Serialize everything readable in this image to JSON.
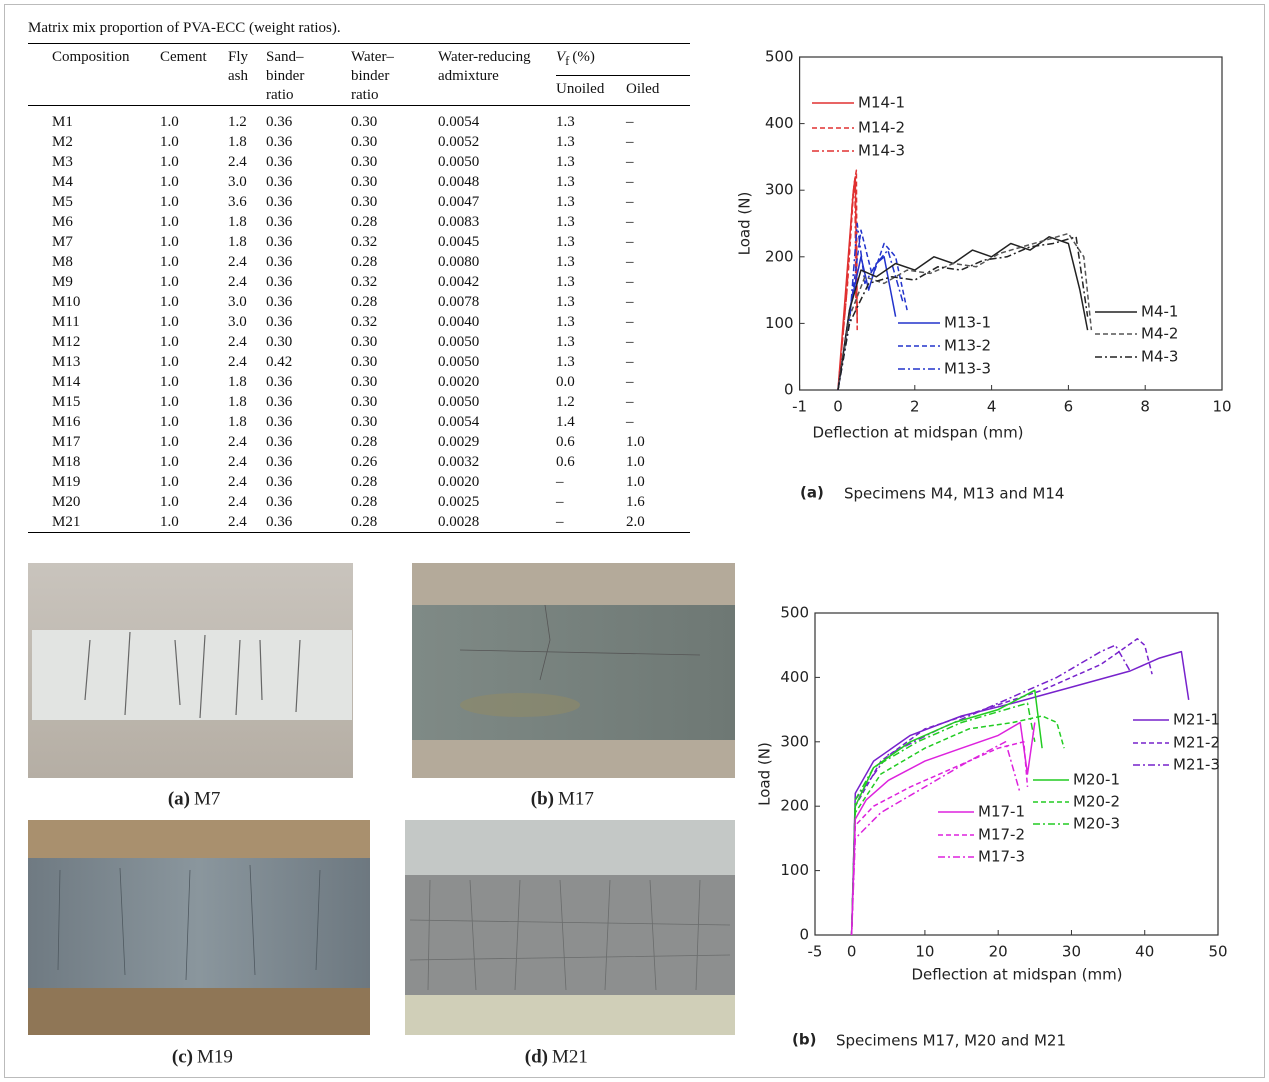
{
  "table": {
    "caption": "Matrix mix proportion of PVA-ECC (weight ratios).",
    "headers": [
      "Composition",
      "Cement",
      "Fly ash",
      "Sand–binder ratio",
      "Water–binder ratio",
      "Water-reducing admixture"
    ],
    "vf_header": {
      "symbol": "V",
      "subscript": "f",
      "unit": "(%)"
    },
    "subheaders": [
      "Unoiled",
      "Oiled"
    ],
    "rows": [
      [
        "M1",
        "1.0",
        "1.2",
        "0.36",
        "0.30",
        "0.0054",
        "1.3",
        "–"
      ],
      [
        "M2",
        "1.0",
        "1.8",
        "0.36",
        "0.30",
        "0.0052",
        "1.3",
        "–"
      ],
      [
        "M3",
        "1.0",
        "2.4",
        "0.36",
        "0.30",
        "0.0050",
        "1.3",
        "–"
      ],
      [
        "M4",
        "1.0",
        "3.0",
        "0.36",
        "0.30",
        "0.0048",
        "1.3",
        "–"
      ],
      [
        "M5",
        "1.0",
        "3.6",
        "0.36",
        "0.30",
        "0.0047",
        "1.3",
        "–"
      ],
      [
        "M6",
        "1.0",
        "1.8",
        "0.36",
        "0.28",
        "0.0083",
        "1.3",
        "–"
      ],
      [
        "M7",
        "1.0",
        "1.8",
        "0.36",
        "0.32",
        "0.0045",
        "1.3",
        "–"
      ],
      [
        "M8",
        "1.0",
        "2.4",
        "0.36",
        "0.28",
        "0.0080",
        "1.3",
        "–"
      ],
      [
        "M9",
        "1.0",
        "2.4",
        "0.36",
        "0.32",
        "0.0042",
        "1.3",
        "–"
      ],
      [
        "M10",
        "1.0",
        "3.0",
        "0.36",
        "0.28",
        "0.0078",
        "1.3",
        "–"
      ],
      [
        "M11",
        "1.0",
        "3.0",
        "0.36",
        "0.32",
        "0.0040",
        "1.3",
        "–"
      ],
      [
        "M12",
        "1.0",
        "2.4",
        "0.30",
        "0.30",
        "0.0050",
        "1.3",
        "–"
      ],
      [
        "M13",
        "1.0",
        "2.4",
        "0.42",
        "0.30",
        "0.0050",
        "1.3",
        "–"
      ],
      [
        "M14",
        "1.0",
        "1.8",
        "0.36",
        "0.30",
        "0.0020",
        "0.0",
        "–"
      ],
      [
        "M15",
        "1.0",
        "1.8",
        "0.36",
        "0.30",
        "0.0050",
        "1.2",
        "–"
      ],
      [
        "M16",
        "1.0",
        "1.8",
        "0.36",
        "0.30",
        "0.0054",
        "1.4",
        "–"
      ],
      [
        "M17",
        "1.0",
        "2.4",
        "0.36",
        "0.28",
        "0.0029",
        "0.6",
        "1.0"
      ],
      [
        "M18",
        "1.0",
        "2.4",
        "0.36",
        "0.26",
        "0.0032",
        "0.6",
        "1.0"
      ],
      [
        "M19",
        "1.0",
        "2.4",
        "0.36",
        "0.28",
        "0.0020",
        "–",
        "1.0"
      ],
      [
        "M20",
        "1.0",
        "2.4",
        "0.36",
        "0.28",
        "0.0025",
        "–",
        "1.6"
      ],
      [
        "M21",
        "1.0",
        "2.4",
        "0.36",
        "0.28",
        "0.0028",
        "–",
        "2.0"
      ]
    ]
  },
  "photos": [
    {
      "label": "(a)",
      "name": "M7"
    },
    {
      "label": "(b)",
      "name": "M17"
    },
    {
      "label": "(c)",
      "name": "M19"
    },
    {
      "label": "(d)",
      "name": "M21"
    }
  ],
  "charts": [
    {
      "type": "line",
      "caption_label": "(a)",
      "caption": "Specimens M4, M13 and M14",
      "xlabel": "Deflection at midspan (mm)",
      "ylabel": "Load (N)",
      "xlim": [
        -1,
        10
      ],
      "ylim": [
        0,
        500
      ],
      "xticks": [
        -1,
        0,
        2,
        4,
        6,
        8,
        10
      ],
      "yticks": [
        0,
        100,
        200,
        300,
        400,
        500
      ],
      "series": [
        {
          "name": "M14-1",
          "color": "#e03030",
          "dash": "solid",
          "x": [
            0,
            0.2,
            0.4,
            0.45,
            0.5
          ],
          "values": [
            0,
            150,
            300,
            320,
            100
          ]
        },
        {
          "name": "M14-2",
          "color": "#e03030",
          "dash": "dashed",
          "x": [
            0,
            0.25,
            0.42,
            0.48,
            0.5
          ],
          "values": [
            0,
            160,
            310,
            330,
            90
          ]
        },
        {
          "name": "M14-3",
          "color": "#e03030",
          "dash": "dashdot",
          "x": [
            0,
            0.22,
            0.38,
            0.44,
            0.47
          ],
          "values": [
            0,
            140,
            290,
            310,
            120
          ]
        },
        {
          "name": "M13-1",
          "color": "#2233cc",
          "dash": "solid",
          "x": [
            0,
            0.3,
            0.6,
            0.8,
            1.0,
            1.2,
            1.5
          ],
          "values": [
            0,
            120,
            200,
            150,
            190,
            200,
            110
          ]
        },
        {
          "name": "M13-2",
          "color": "#2233cc",
          "dash": "dashed",
          "x": [
            0,
            0.3,
            0.6,
            0.9,
            1.2,
            1.5,
            1.8
          ],
          "values": [
            0,
            110,
            240,
            170,
            220,
            200,
            120
          ]
        },
        {
          "name": "M13-3",
          "color": "#2233cc",
          "dash": "dashdot",
          "x": [
            0,
            0.3,
            0.5,
            0.7,
            1.0,
            1.3,
            1.7
          ],
          "values": [
            0,
            100,
            250,
            160,
            190,
            210,
            130
          ]
        },
        {
          "name": "M4-1",
          "color": "#222222",
          "dash": "solid",
          "x": [
            0,
            0.3,
            0.6,
            1,
            1.5,
            2,
            2.5,
            3,
            3.5,
            4,
            4.5,
            5,
            5.5,
            6,
            6.3,
            6.5
          ],
          "values": [
            0,
            120,
            180,
            170,
            190,
            180,
            200,
            190,
            210,
            200,
            220,
            210,
            230,
            220,
            150,
            90
          ]
        },
        {
          "name": "M4-2",
          "color": "#555555",
          "dash": "dashed",
          "x": [
            0,
            0.3,
            0.7,
            1.2,
            1.8,
            2.4,
            3,
            3.6,
            4.2,
            4.8,
            5.4,
            6,
            6.4,
            6.6
          ],
          "values": [
            0,
            110,
            170,
            160,
            180,
            175,
            190,
            185,
            205,
            215,
            225,
            235,
            200,
            90
          ]
        },
        {
          "name": "M4-3",
          "color": "#222222",
          "dash": "dashdot",
          "x": [
            0,
            0.3,
            0.8,
            1.4,
            2,
            2.6,
            3.2,
            3.8,
            4.4,
            5,
            5.6,
            6.2,
            6.5
          ],
          "values": [
            0,
            100,
            160,
            170,
            165,
            185,
            180,
            195,
            200,
            215,
            220,
            230,
            110
          ]
        }
      ]
    },
    {
      "type": "line",
      "caption_label": "(b)",
      "caption": "Specimens M17, M20 and M21",
      "xlabel": "Deflection at midspan (mm)",
      "ylabel": "Load (N)",
      "xlim": [
        -5,
        50
      ],
      "ylim": [
        0,
        500
      ],
      "xticks": [
        -5,
        0,
        10,
        20,
        30,
        40,
        50
      ],
      "yticks": [
        0,
        100,
        200,
        300,
        400,
        500
      ],
      "series": [
        {
          "name": "M21-1",
          "color": "#7722cc",
          "dash": "solid",
          "x": [
            0,
            0.5,
            3,
            8,
            15,
            22,
            30,
            38,
            42,
            45,
            46
          ],
          "values": [
            0,
            220,
            270,
            310,
            340,
            360,
            385,
            410,
            430,
            440,
            365
          ]
        },
        {
          "name": "M21-2",
          "color": "#7722cc",
          "dash": "dashed",
          "x": [
            0,
            0.5,
            4,
            10,
            18,
            26,
            34,
            39,
            40,
            41
          ],
          "values": [
            0,
            200,
            270,
            320,
            350,
            380,
            420,
            460,
            450,
            405
          ]
        },
        {
          "name": "M21-3",
          "color": "#7722cc",
          "dash": "dashdot",
          "x": [
            0,
            0.5,
            5,
            12,
            20,
            28,
            34,
            36,
            38
          ],
          "values": [
            0,
            210,
            280,
            320,
            360,
            400,
            440,
            450,
            410
          ]
        },
        {
          "name": "M20-1",
          "color": "#22cc22",
          "dash": "solid",
          "x": [
            0,
            0.5,
            3,
            8,
            14,
            20,
            25,
            26
          ],
          "values": [
            0,
            200,
            260,
            300,
            330,
            350,
            380,
            290
          ]
        },
        {
          "name": "M20-2",
          "color": "#22cc22",
          "dash": "dashed",
          "x": [
            0,
            0.5,
            4,
            10,
            16,
            22,
            26,
            28,
            29
          ],
          "values": [
            0,
            190,
            250,
            290,
            320,
            330,
            340,
            330,
            290
          ]
        },
        {
          "name": "M20-3",
          "color": "#22cc22",
          "dash": "dashdot",
          "x": [
            0,
            0.5,
            3,
            9,
            15,
            21,
            24,
            25
          ],
          "values": [
            0,
            210,
            260,
            300,
            330,
            350,
            360,
            300
          ]
        },
        {
          "name": "M17-1",
          "color": "#dd22dd",
          "dash": "solid",
          "x": [
            0,
            0.5,
            2,
            5,
            10,
            15,
            20,
            23,
            24,
            25
          ],
          "values": [
            0,
            180,
            210,
            240,
            270,
            290,
            310,
            330,
            250,
            330
          ]
        },
        {
          "name": "M17-2",
          "color": "#dd22dd",
          "dash": "dashed",
          "x": [
            0,
            0.5,
            3,
            8,
            14,
            20,
            23.5,
            24
          ],
          "values": [
            0,
            170,
            200,
            230,
            260,
            290,
            300,
            230
          ]
        },
        {
          "name": "M17-3",
          "color": "#dd22dd",
          "dash": "dashdot",
          "x": [
            0,
            0.5,
            4,
            10,
            16,
            21,
            23
          ],
          "values": [
            0,
            150,
            190,
            230,
            270,
            300,
            220
          ]
        }
      ]
    }
  ]
}
